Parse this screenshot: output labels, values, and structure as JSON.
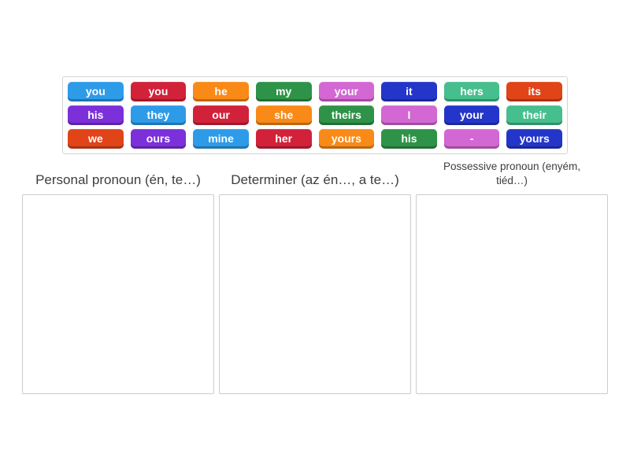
{
  "activity": {
    "tile_text_color": "#ffffff",
    "tiles": [
      {
        "word": "you",
        "color": "#2D9BE8"
      },
      {
        "word": "you",
        "color": "#D1223A"
      },
      {
        "word": "he",
        "color": "#F98A17"
      },
      {
        "word": "my",
        "color": "#2E9348"
      },
      {
        "word": "your",
        "color": "#D367D3"
      },
      {
        "word": "it",
        "color": "#2336C9"
      },
      {
        "word": "hers",
        "color": "#46BE8D"
      },
      {
        "word": "its",
        "color": "#E04418"
      },
      {
        "word": "his",
        "color": "#7B30DA"
      },
      {
        "word": "they",
        "color": "#2D9BE8"
      },
      {
        "word": "our",
        "color": "#D1223A"
      },
      {
        "word": "she",
        "color": "#F98A17"
      },
      {
        "word": "theirs",
        "color": "#2E9348"
      },
      {
        "word": "I",
        "color": "#D367D3"
      },
      {
        "word": "your",
        "color": "#2336C9"
      },
      {
        "word": "their",
        "color": "#46BE8D"
      },
      {
        "word": "we",
        "color": "#E04418"
      },
      {
        "word": "ours",
        "color": "#7B30DA"
      },
      {
        "word": "mine",
        "color": "#2D9BE8"
      },
      {
        "word": "her",
        "color": "#D1223A"
      },
      {
        "word": "yours",
        "color": "#F98A17"
      },
      {
        "word": "his",
        "color": "#2E9348"
      },
      {
        "word": "-",
        "color": "#D367D3"
      },
      {
        "word": "yours",
        "color": "#2336C9"
      }
    ],
    "groups": [
      {
        "title": "Personal pronoun (én, te…)"
      },
      {
        "title": "Determiner (az én…, a te…)"
      },
      {
        "title": "Possessive pronoun (enyém, tiéd…)"
      }
    ]
  }
}
